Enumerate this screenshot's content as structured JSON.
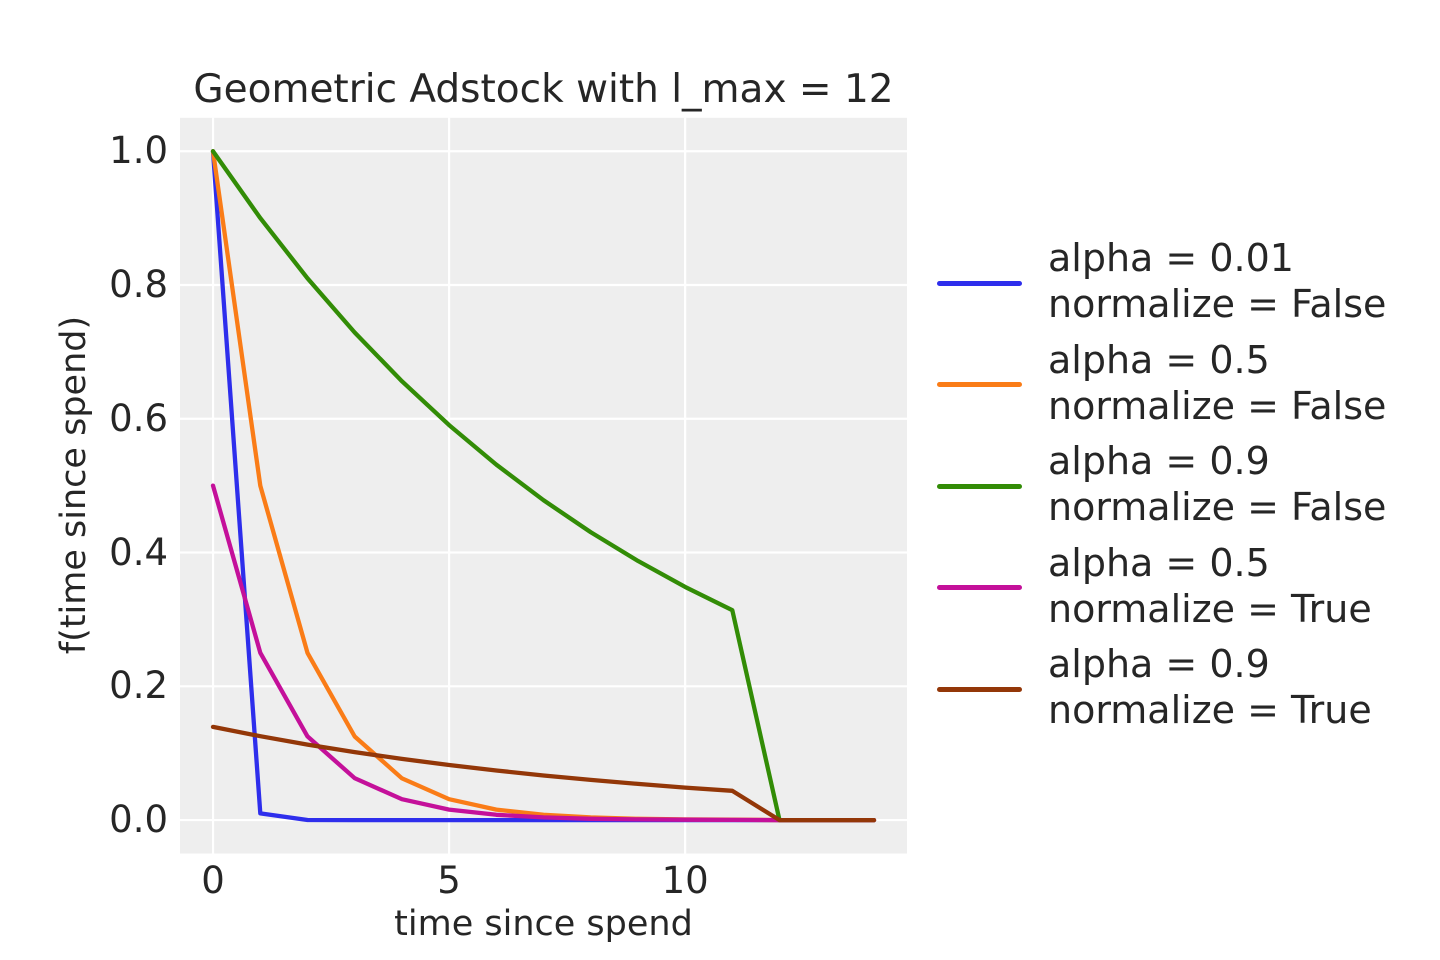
{
  "figure": {
    "background": "#ffffff",
    "text_color": "#262626"
  },
  "chart_data": {
    "type": "line",
    "title": "Geometric Adstock with l_max = 12",
    "xlabel": "time since spend",
    "ylabel": "f(time since spend)",
    "l_max": 12,
    "plot_background": "#eeeeee",
    "grid": true,
    "grid_color": "#ffffff",
    "legend_position": "right",
    "xlim": [
      -0.7,
      14.7
    ],
    "ylim": [
      -0.05,
      1.05
    ],
    "xticks": {
      "values": [
        0,
        5,
        10
      ],
      "labels": [
        "0",
        "5",
        "10"
      ]
    },
    "yticks": {
      "values": [
        0.0,
        0.2,
        0.4,
        0.6,
        0.8,
        1.0
      ],
      "labels": [
        "0.0",
        "0.2",
        "0.4",
        "0.6",
        "0.8",
        "1.0"
      ]
    },
    "x": [
      0,
      1,
      2,
      3,
      4,
      5,
      6,
      7,
      8,
      9,
      10,
      11,
      12,
      13,
      14
    ],
    "series": [
      {
        "label_line1": "alpha = 0.01",
        "label_line2": "normalize = False",
        "color": "#2e2eec",
        "values": [
          1.0,
          0.01,
          0.0001,
          1e-06,
          0,
          0,
          0,
          0,
          0,
          0,
          0,
          0,
          0,
          0,
          0
        ]
      },
      {
        "label_line1": "alpha = 0.5",
        "label_line2": "normalize = False",
        "color": "#fa7c17",
        "values": [
          1.0,
          0.5,
          0.25,
          0.125,
          0.0625,
          0.03125,
          0.015625,
          0.0078125,
          0.0039063,
          0.0019531,
          0.0009766,
          0.0004883,
          0,
          0,
          0
        ]
      },
      {
        "label_line1": "alpha = 0.9",
        "label_line2": "normalize = False",
        "color": "#328c06",
        "values": [
          1.0,
          0.9,
          0.81,
          0.729,
          0.6561,
          0.59049,
          0.531441,
          0.4782969,
          0.4304672,
          0.3874205,
          0.3486784,
          0.3138106,
          0,
          0,
          0
        ]
      },
      {
        "label_line1": "alpha = 0.5",
        "label_line2": "normalize = True",
        "color": "#c4109a",
        "values": [
          0.5001221,
          0.250061,
          0.1250305,
          0.0625153,
          0.0312576,
          0.0156288,
          0.0078144,
          0.0039072,
          0.0019536,
          0.0009768,
          0.0004884,
          0.0002442,
          0,
          0,
          0
        ]
      },
      {
        "label_line1": "alpha = 0.9",
        "label_line2": "normalize = True",
        "color": "#933708",
        "values": [
          0.1393589,
          0.125423,
          0.1128807,
          0.1015926,
          0.0914334,
          0.08229,
          0.074061,
          0.0666549,
          0.0599894,
          0.0539905,
          0.0485914,
          0.0437323,
          0,
          0,
          0
        ]
      }
    ]
  }
}
